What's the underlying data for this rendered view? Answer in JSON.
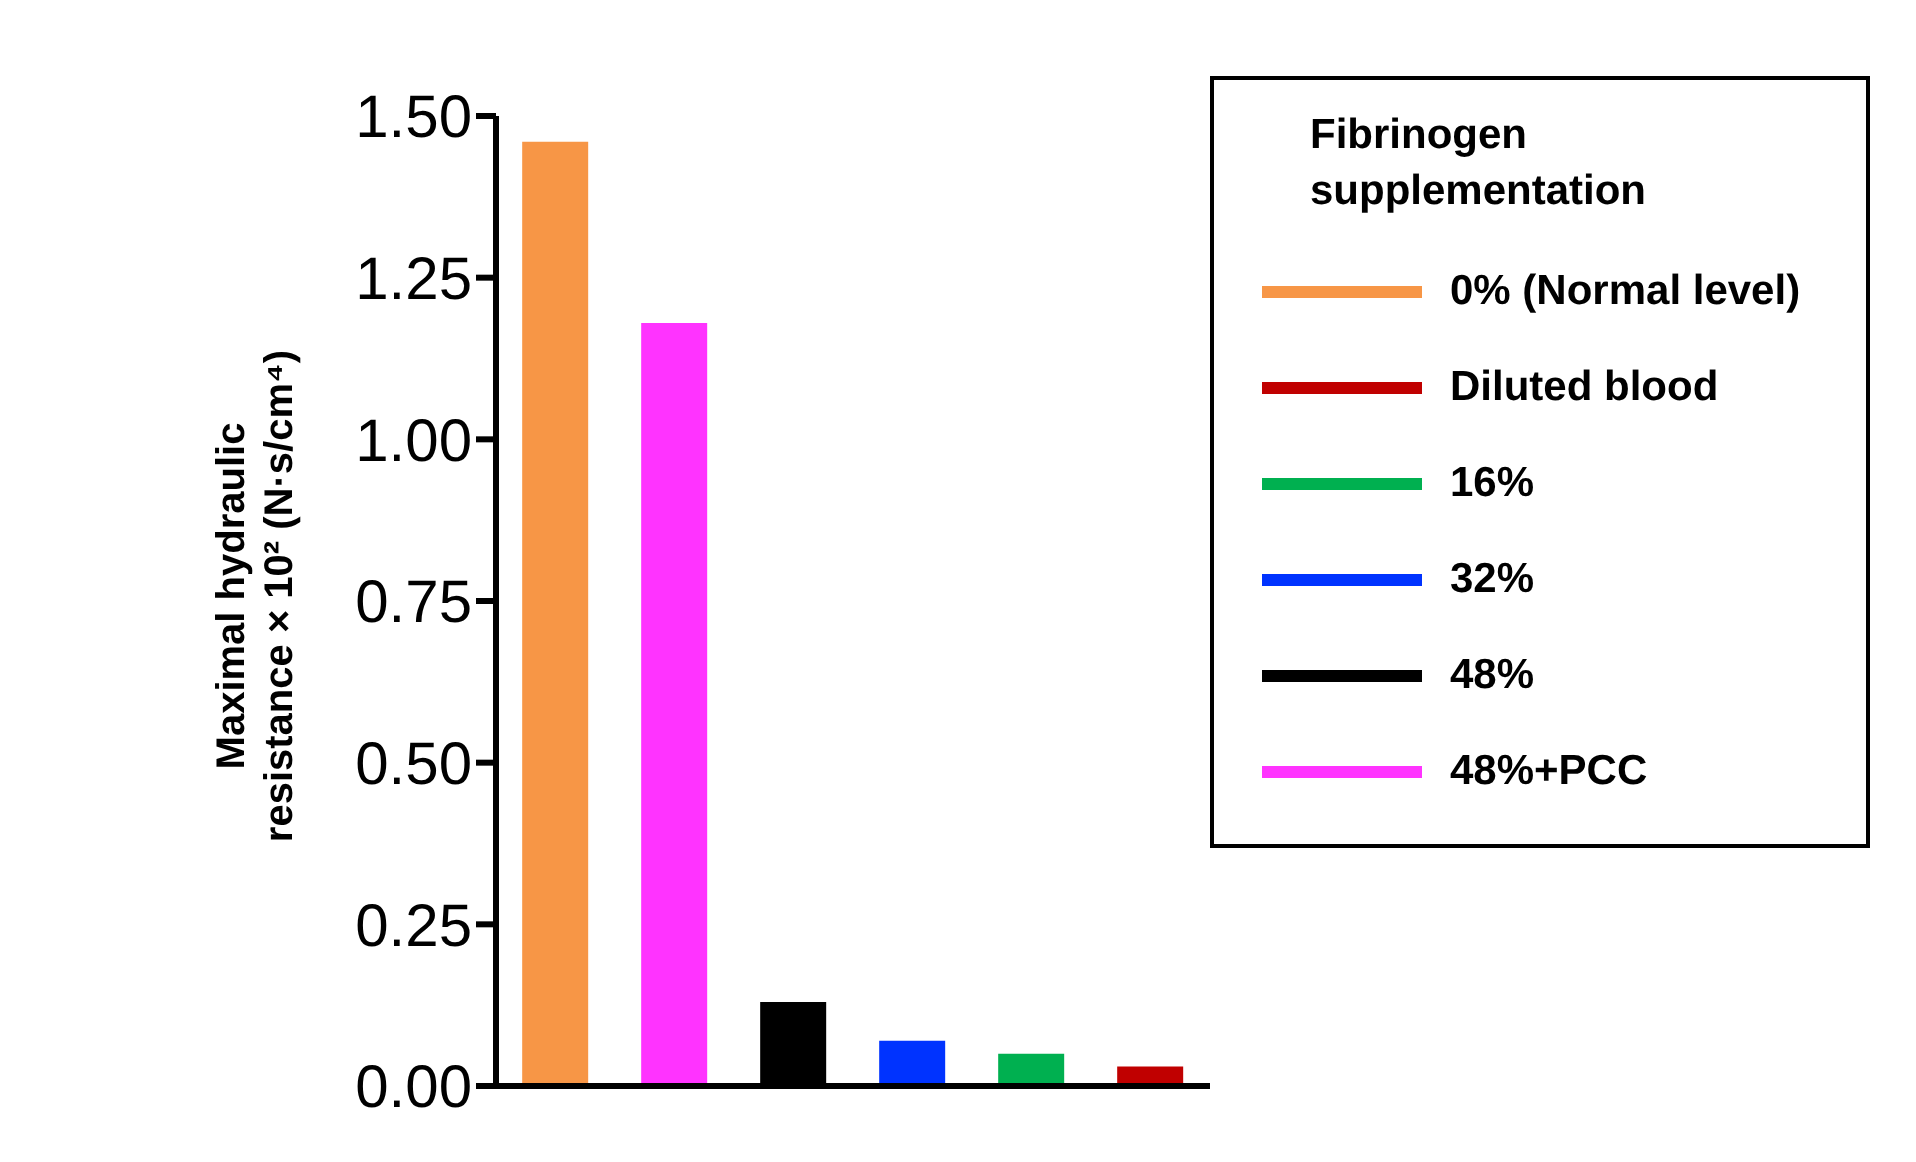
{
  "chart_data": {
    "type": "bar",
    "ylabel": "Maximal hydraulic resistance × 10² (N·s/cm⁴)",
    "legend_title": "Fibrinogen supplementation",
    "categories": [
      null,
      null,
      null,
      null,
      null,
      null
    ],
    "stacked": true,
    "ylim": [
      0,
      1.5
    ],
    "yticks": [
      {
        "value": 0,
        "label": "0.00"
      },
      {
        "value": 0.25,
        "label": "0.25"
      },
      {
        "value": 0.5,
        "label": "0.50"
      },
      {
        "value": 0.75,
        "label": "0.75"
      },
      {
        "value": 1,
        "label": "1.00"
      },
      {
        "value": 1.25,
        "label": "1.25"
      },
      {
        "value": 1.5,
        "label": "1.50"
      }
    ],
    "legend": "top right",
    "series": [
      {
        "name": "0% (Normal level)",
        "color": "#f79646",
        "values": [
          1.46,
          null,
          null,
          null,
          null,
          null
        ]
      },
      {
        "name": "Diluted blood",
        "color": "#c00000",
        "values": [
          null,
          null,
          null,
          null,
          null,
          0.03
        ]
      },
      {
        "name": "16%",
        "color": "#00b050",
        "values": [
          null,
          null,
          null,
          null,
          0.05,
          null
        ]
      },
      {
        "name": "32%",
        "color": "#0033ff",
        "values": [
          null,
          null,
          null,
          0.07,
          null,
          null
        ]
      },
      {
        "name": "48%",
        "color": "#000000",
        "values": [
          null,
          null,
          0.13,
          null,
          null,
          null
        ]
      },
      {
        "name": "48%+PCC",
        "color": "#ff33ff",
        "values": [
          null,
          1.18,
          null,
          null,
          null,
          null
        ]
      }
    ]
  }
}
